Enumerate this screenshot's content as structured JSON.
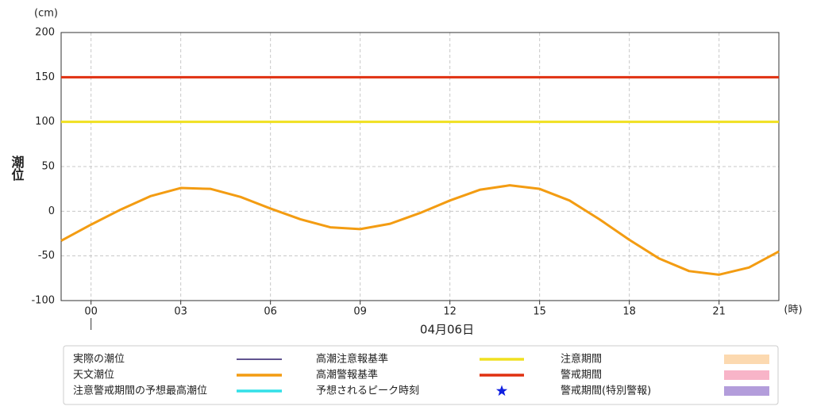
{
  "chart_data": {
    "type": "line",
    "y_unit": "(cm)",
    "y_label": "潮位",
    "x_unit": "(時)",
    "date_label": "04月06日",
    "x": [
      -1,
      0,
      1,
      2,
      3,
      4,
      5,
      6,
      7,
      8,
      9,
      10,
      11,
      12,
      13,
      14,
      15,
      16,
      17,
      18,
      19,
      20,
      21,
      22,
      23
    ],
    "series": [
      {
        "name": "実際の潮位",
        "color": "#2b1a6b",
        "values": [
          null,
          null,
          null,
          null,
          null,
          null,
          null,
          null,
          null,
          null,
          null,
          null,
          null,
          null,
          null,
          null,
          null,
          null,
          null,
          null,
          null,
          null,
          null,
          null,
          null
        ]
      },
      {
        "name": "天文潮位",
        "color": "#f39c12",
        "values": [
          -33,
          -15,
          2,
          17,
          26,
          25,
          16,
          3,
          -9,
          -18,
          -20,
          -14,
          -2,
          12,
          24,
          29,
          25,
          12,
          -9,
          -32,
          -53,
          -67,
          -71,
          -63,
          -45
        ]
      },
      {
        "name": "注意警戒期間の予想最高潮位",
        "color": "#33e0e8",
        "values": [
          null,
          null,
          null,
          null,
          null,
          null,
          null,
          null,
          null,
          null,
          null,
          null,
          null,
          null,
          null,
          null,
          null,
          null,
          null,
          null,
          null,
          null,
          null,
          null,
          null
        ]
      }
    ],
    "thresholds": [
      {
        "name": "高潮注意報基準",
        "color": "#f0e020",
        "value": 100
      },
      {
        "name": "高潮警報基準",
        "color": "#e03010",
        "value": 150
      }
    ],
    "peak_marker": {
      "name": "予想されるピーク時刻",
      "color": "#1020e0"
    },
    "periods": [
      {
        "name": "注意期間",
        "color": "#fcd9b0"
      },
      {
        "name": "警戒期間",
        "color": "#f8b4c8"
      },
      {
        "name": "警戒期間(特別警報)",
        "color": "#b39ddb"
      }
    ],
    "xlim": [
      -1,
      23
    ],
    "xticks": [
      {
        "value": 0,
        "label": "00"
      },
      {
        "value": 3,
        "label": "03"
      },
      {
        "value": 6,
        "label": "06"
      },
      {
        "value": 9,
        "label": "09"
      },
      {
        "value": 12,
        "label": "12"
      },
      {
        "value": 15,
        "label": "15"
      },
      {
        "value": 18,
        "label": "18"
      },
      {
        "value": 21,
        "label": "21"
      }
    ],
    "ylim": [
      -100,
      200
    ],
    "yticks": [
      -100,
      -50,
      0,
      50,
      100,
      150,
      200
    ],
    "grid": true
  }
}
